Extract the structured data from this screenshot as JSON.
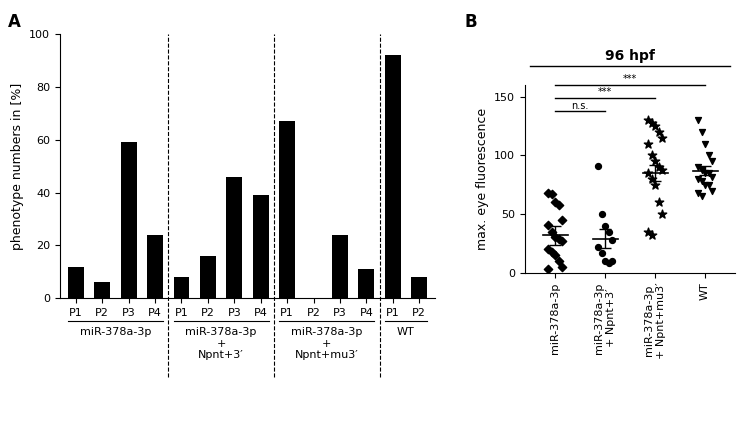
{
  "chart_data": [
    {
      "type": "bar",
      "panel_label": "A",
      "y_label": "phenotype numbers in [%]",
      "ylim": [
        0,
        100
      ],
      "yticks": [
        0,
        20,
        40,
        60,
        80,
        100
      ],
      "color": "#000000",
      "groups": [
        {
          "name": "miR-378a-3p",
          "categories": [
            "P1",
            "P2",
            "P3",
            "P4"
          ],
          "values": [
            12,
            6,
            59,
            24
          ]
        },
        {
          "name": "miR-378a-3p\n+\nNpnt+3′",
          "categories": [
            "P1",
            "P2",
            "P3",
            "P4"
          ],
          "values": [
            8,
            16,
            46,
            39
          ]
        },
        {
          "name": "miR-378a-3p\n+\nNpnt+mu3′",
          "categories": [
            "P1",
            "P2",
            "P3",
            "P4"
          ],
          "values": [
            67,
            0,
            24,
            11
          ]
        },
        {
          "name": "WT",
          "categories": [
            "P1",
            "P2"
          ],
          "values": [
            92,
            8
          ]
        }
      ]
    },
    {
      "type": "scatter",
      "panel_label": "B",
      "title": "96 hpf",
      "y_label": "max. eye fluorescence",
      "ylim": [
        0,
        160
      ],
      "yticks": [
        0,
        50,
        100,
        150
      ],
      "color": "#000000",
      "series": [
        {
          "name": "miR-378a-3p",
          "marker": "diamond",
          "mean": 32,
          "sem": 8,
          "values": [
            68,
            67,
            60,
            58,
            45,
            41,
            35,
            30,
            29,
            27,
            20,
            18,
            15,
            10,
            5,
            3
          ]
        },
        {
          "name": "miR-378a-3p\n+ Npnt+3′",
          "marker": "circle",
          "mean": 29,
          "sem": 8,
          "values": [
            91,
            50,
            40,
            35,
            28,
            22,
            17,
            10,
            8,
            10
          ]
        },
        {
          "name": "miR-378a-3p\n+ Npnt+mu3′",
          "marker": "star",
          "mean": 85,
          "sem": 7,
          "values": [
            130,
            128,
            125,
            120,
            115,
            110,
            100,
            95,
            90,
            88,
            85,
            80,
            75,
            60,
            50,
            35,
            32
          ]
        },
        {
          "name": "WT",
          "marker": "triangle_down",
          "mean": 87,
          "sem": 4,
          "values": [
            130,
            120,
            110,
            100,
            95,
            90,
            88,
            85,
            85,
            82,
            80,
            78,
            75,
            75,
            70,
            68,
            65
          ]
        }
      ],
      "comparisons": [
        {
          "from": 0,
          "to": 1,
          "label": "n.s."
        },
        {
          "from": 0,
          "to": 2,
          "label": "***"
        },
        {
          "from": 0,
          "to": 3,
          "label": "***"
        }
      ]
    }
  ]
}
